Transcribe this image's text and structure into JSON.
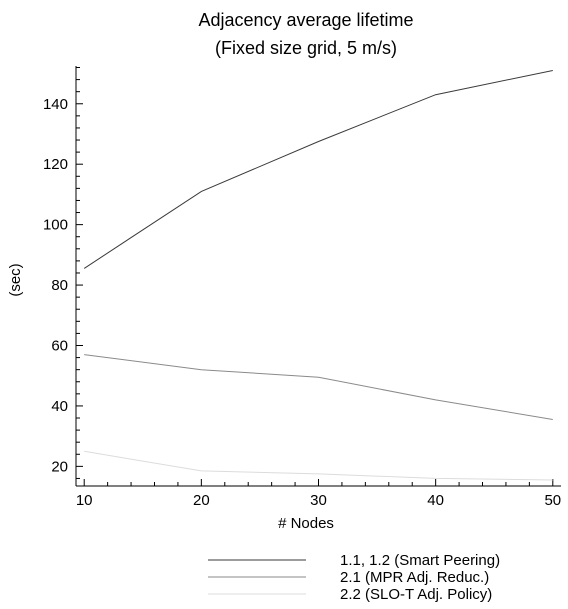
{
  "chart_data": {
    "type": "line",
    "title": "Adjacency average lifetime",
    "subtitle": "(Fixed size grid, 5 m/s)",
    "xlabel": "# Nodes",
    "ylabel": "(sec)",
    "x": [
      10,
      20,
      30,
      40,
      50
    ],
    "xlim": [
      9.3,
      50.7
    ],
    "ylim": [
      13.5,
      152.5
    ],
    "xticks": [
      10,
      20,
      30,
      40,
      50
    ],
    "yticks": [
      20,
      40,
      60,
      80,
      100,
      120,
      140
    ],
    "x_minor_step": 2,
    "y_minor_step": 4,
    "grid": false,
    "legend_position": "bottom",
    "series": [
      {
        "name": "1.1, 1.2 (Smart Peering)",
        "values": [
          85.5,
          111,
          127.5,
          143,
          151
        ],
        "color": "#3a3a3a"
      },
      {
        "name": "2.1 (MPR Adj. Reduc.)",
        "values": [
          57,
          52,
          49.5,
          42,
          35.5
        ],
        "color": "#8a8a8a"
      },
      {
        "name": "2.2 (SLO-T Adj. Policy)",
        "values": [
          25,
          18.5,
          17.5,
          16,
          15.5
        ],
        "color": "#dcdcdc"
      }
    ]
  }
}
